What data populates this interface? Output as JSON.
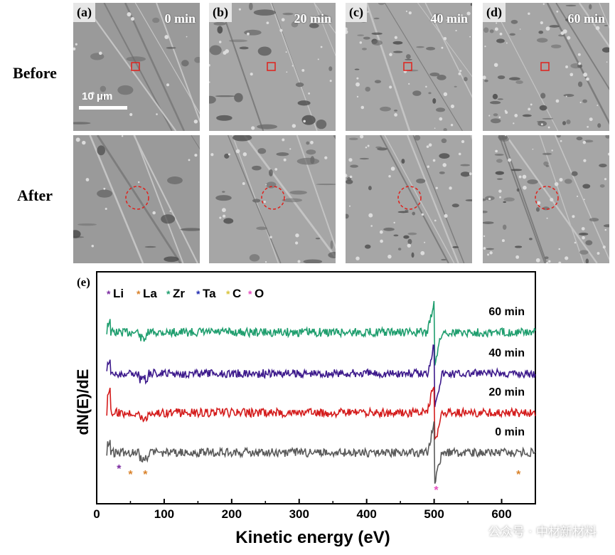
{
  "row_labels": {
    "before": "Before",
    "after": "After"
  },
  "panels": [
    {
      "letter": "(a)",
      "time": "0 min"
    },
    {
      "letter": "(b)",
      "time": "20 min"
    },
    {
      "letter": "(c)",
      "time": "40 min"
    },
    {
      "letter": "(d)",
      "time": "60 min"
    }
  ],
  "scale_bar_label": "10 μm",
  "watermark": "公众号 · 中材新材料",
  "colors": {
    "marker_square": "#e0201b",
    "marker_circle": "#e0201b",
    "li": "#7b2aa0",
    "la": "#d9822b",
    "zr": "#1f9e6e",
    "ta": "#1f2bb0",
    "c": "#d8c43a",
    "o": "#e64fbf"
  },
  "chart_data": {
    "type": "line",
    "panel_label": "(e)",
    "xlabel": "Kinetic energy (eV)",
    "ylabel": "dN(E)/dE",
    "xlim": [
      0,
      650
    ],
    "xticks": [
      "0",
      "100",
      "200",
      "300",
      "400",
      "500",
      "600"
    ],
    "legend": [
      {
        "glyph": "*",
        "label": "Li",
        "color": "#7b2aa0"
      },
      {
        "glyph": "*",
        "label": "La",
        "color": "#d9822b"
      },
      {
        "glyph": "*",
        "label": "Zr",
        "color": "#1f9e6e"
      },
      {
        "glyph": "*",
        "label": "Ta",
        "color": "#1f2bb0"
      },
      {
        "glyph": "*",
        "label": "C",
        "color": "#d8c43a"
      },
      {
        "glyph": "*",
        "label": "O",
        "color": "#e64fbf"
      }
    ],
    "series": [
      {
        "name": "60 min",
        "color": "#1f9e6e"
      },
      {
        "name": "40 min",
        "color": "#3d1a8c"
      },
      {
        "name": "20 min",
        "color": "#d41c1c"
      },
      {
        "name": "0 min",
        "color": "#5a5a5a"
      }
    ],
    "peak_markers": [
      {
        "energy": 33,
        "color": "#7b2aa0"
      },
      {
        "energy": 50,
        "color": "#d9822b"
      },
      {
        "energy": 72,
        "color": "#d9822b"
      },
      {
        "energy": 503,
        "color": "#e64fbf"
      },
      {
        "energy": 625,
        "color": "#d9822b"
      }
    ],
    "features": {
      "o_peak_energy": 500,
      "la_low_energy": 70
    }
  }
}
